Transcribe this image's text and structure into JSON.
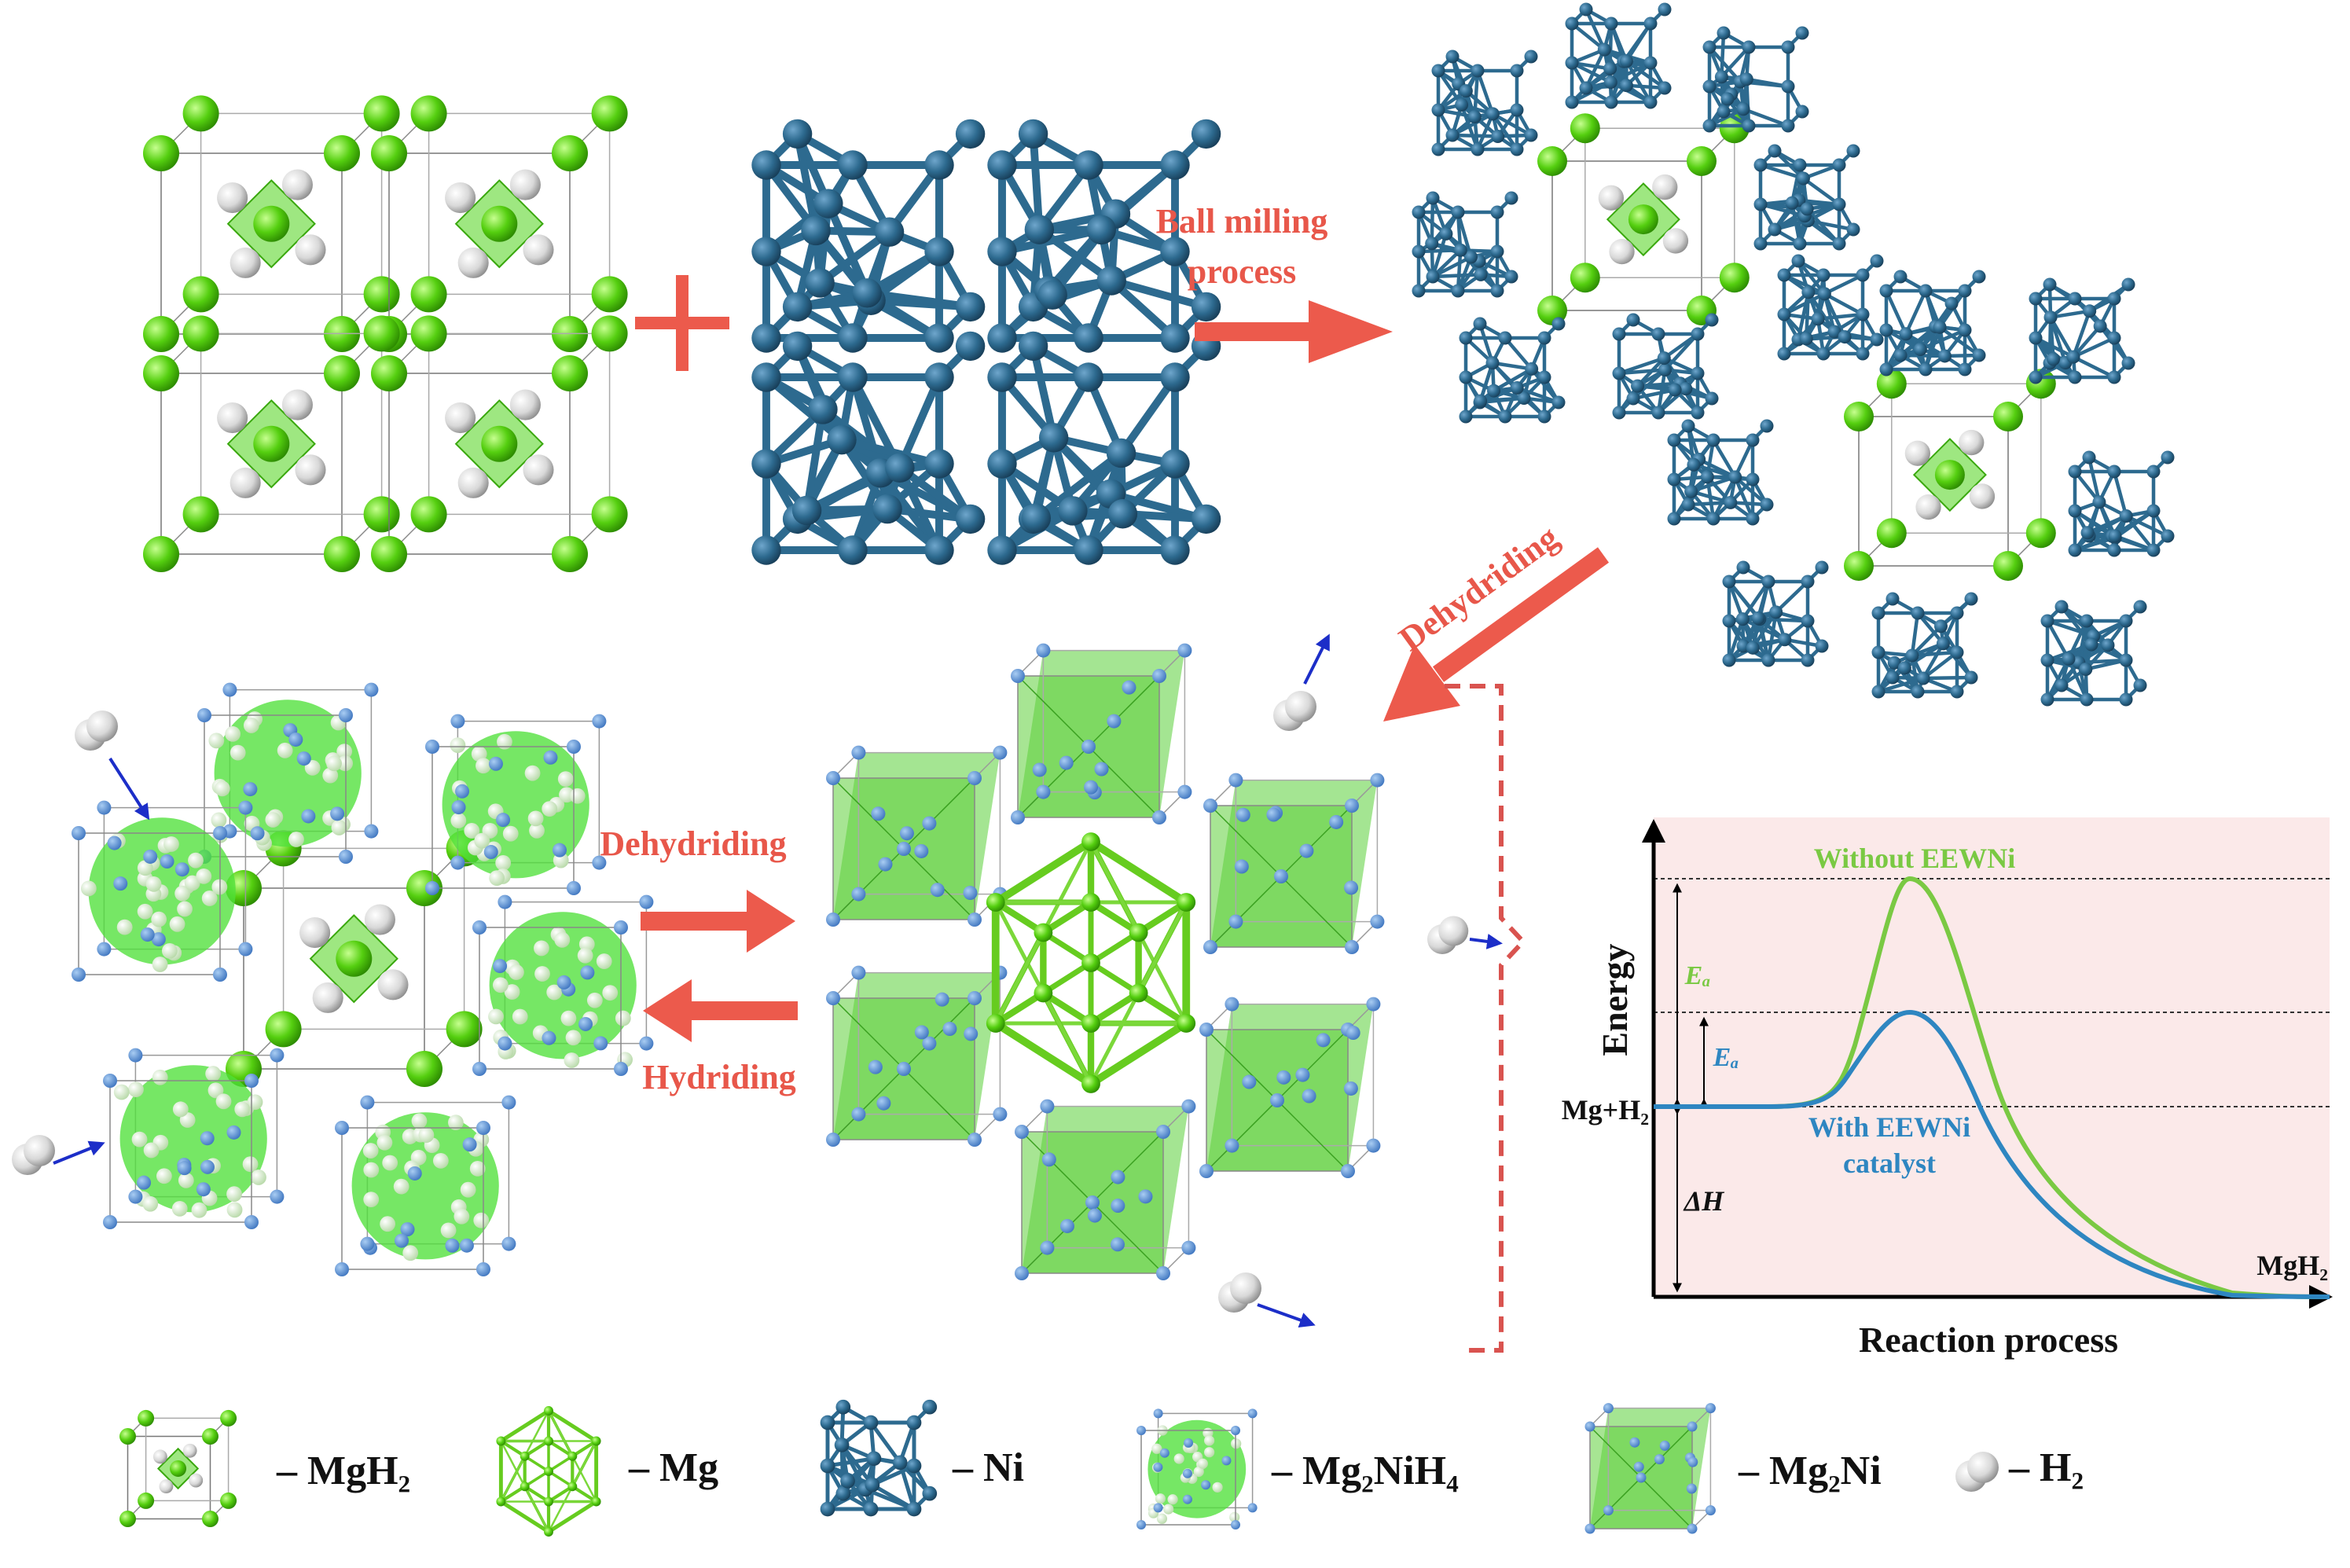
{
  "process": {
    "ball_milling_line1": "Ball milling",
    "ball_milling_line2": "process",
    "dehydriding_diag": "Dehydriding",
    "dehydriding": "Dehydriding",
    "hydriding": "Hydriding"
  },
  "energy_chart": {
    "ylabel": "Energy",
    "xlabel": "Reaction process",
    "start_label": "Mg+H₂",
    "end_label": "MgH₂",
    "curve_without": "Without EEWNi",
    "curve_with_line1": "With EEWNi",
    "curve_with_line2": "catalyst",
    "ea_without": "Eₐ",
    "ea_with": "Eₐ",
    "delta_h": "ΔH",
    "colors": {
      "without": "#7ac943",
      "with": "#2e86c1",
      "background": "#fbe9e9"
    }
  },
  "legend": [
    {
      "label": "– MgH₂"
    },
    {
      "label": "– Mg"
    },
    {
      "label": "– Ni"
    },
    {
      "label": "– Mg₂NiH₄"
    },
    {
      "label": "– Mg₂Ni"
    },
    {
      "label": "– H₂"
    }
  ],
  "colors": {
    "mgh2_green": "#58d000",
    "ni_blue": "#2d6a8f",
    "mg2nih4_green": "#67e64e",
    "mg2ni_green": "#6fd35a",
    "arrow_red": "#ec5a4c",
    "h2_gray": "#d4d4d4",
    "small_arrow": "#1c2ec8"
  }
}
